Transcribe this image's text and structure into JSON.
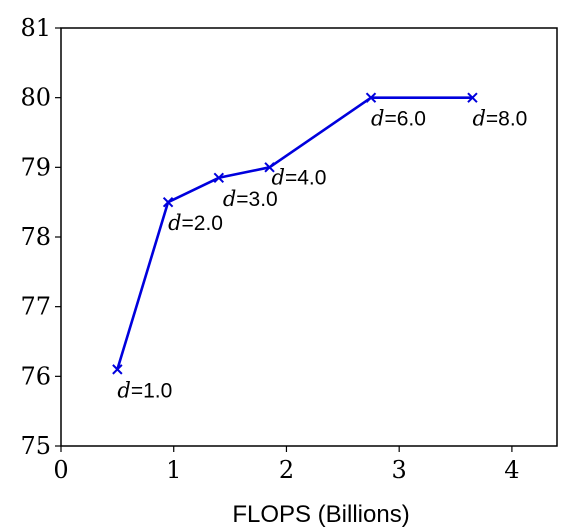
{
  "chart_data": {
    "type": "line",
    "title": "",
    "xlabel": "FLOPS (Billions)",
    "ylabel": "",
    "xlim": [
      0,
      4.4
    ],
    "ylim": [
      75,
      81
    ],
    "x_ticks": [
      0,
      1,
      2,
      3,
      4
    ],
    "y_ticks": [
      75,
      76,
      77,
      78,
      79,
      80,
      81
    ],
    "grid": false,
    "legend": "none",
    "series": [
      {
        "color": "#0000dd",
        "marker": "x",
        "points": [
          {
            "x": 0.5,
            "y": 76.1,
            "label_var": "d",
            "label_val": "=1.0"
          },
          {
            "x": 0.95,
            "y": 78.5,
            "label_var": "d",
            "label_val": "=2.0"
          },
          {
            "x": 1.4,
            "y": 78.85,
            "label_var": "d",
            "label_val": "=3.0"
          },
          {
            "x": 1.85,
            "y": 79.0,
            "label_var": "d",
            "label_val": "=4.0"
          },
          {
            "x": 2.75,
            "y": 80.0,
            "label_var": "d",
            "label_val": "=6.0"
          },
          {
            "x": 3.65,
            "y": 80.0,
            "label_var": "d",
            "label_val": "=8.0"
          }
        ]
      }
    ]
  }
}
